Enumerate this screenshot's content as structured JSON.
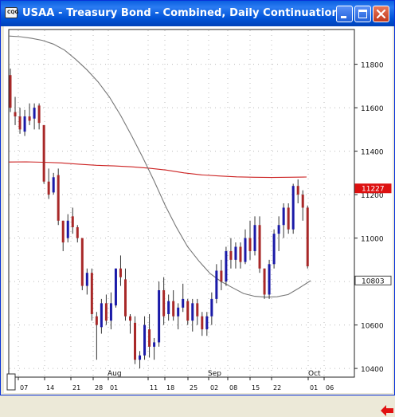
{
  "window": {
    "title": "USAA - Treasury Bond - Combined, Daily Continuation",
    "icon_text": "CQG"
  },
  "controls": {
    "minimize_icon": "minimize-icon",
    "maximize_icon": "maximize-icon",
    "close_icon": "close-icon"
  },
  "colors": {
    "up_candle": "#1a1aa8",
    "down_candle": "#a82828",
    "grid": "#bbbbbb",
    "ma_long": "#cc2222",
    "ma_curve": "#777777",
    "price_tag_red": "#dd1111",
    "price_tag_gray": "#444444"
  },
  "scroll_icon": "left-arrow-icon",
  "chart_data": {
    "type": "candlestick",
    "instrument": "USAA - Treasury Bond - Combined, Daily Continuation",
    "y_ticks": [
      "11800",
      "11600",
      "11400",
      "11200",
      "11000",
      "10800",
      "10600",
      "10400"
    ],
    "y_values": [
      11800,
      11600,
      11400,
      11200,
      11000,
      10800,
      10600,
      10400
    ],
    "ylim": [
      10360,
      11960
    ],
    "x_ticks": [
      "07",
      "14",
      "21",
      "28",
      "01",
      "11",
      "18",
      "25",
      "02",
      "08",
      "15",
      "22",
      "01",
      "06"
    ],
    "month_labels": [
      "Aug",
      "Sep",
      "Oct"
    ],
    "price_tags": [
      {
        "value": 11227,
        "label": "11227",
        "style": "red"
      },
      {
        "value": 10803,
        "label": "10803",
        "style": "gray"
      }
    ],
    "candles": [
      [
        11750,
        11780,
        11580,
        11600
      ],
      [
        11580,
        11650,
        11520,
        11560
      ],
      [
        11560,
        11600,
        11480,
        11500
      ],
      [
        11490,
        11590,
        11470,
        11560
      ],
      [
        11560,
        11620,
        11520,
        11540
      ],
      [
        11550,
        11620,
        11500,
        11600
      ],
      [
        11610,
        11620,
        11500,
        11530
      ],
      [
        11520,
        11520,
        11250,
        11260
      ],
      [
        11260,
        11320,
        11180,
        11200
      ],
      [
        11210,
        11300,
        11200,
        11280
      ],
      [
        11290,
        11320,
        11060,
        11080
      ],
      [
        11080,
        11080,
        10940,
        10980
      ],
      [
        11000,
        11110,
        10980,
        11080
      ],
      [
        11100,
        11140,
        11020,
        11050
      ],
      [
        11050,
        11060,
        10980,
        11000
      ],
      [
        11000,
        11000,
        10760,
        10780
      ],
      [
        10780,
        10860,
        10740,
        10840
      ],
      [
        10840,
        10860,
        10620,
        10650
      ],
      [
        10640,
        10660,
        10440,
        10600
      ],
      [
        10590,
        10720,
        10560,
        10700
      ],
      [
        10700,
        10740,
        10600,
        10620
      ],
      [
        10620,
        10750,
        10580,
        10700
      ],
      [
        10690,
        10860,
        10680,
        10860
      ],
      [
        10860,
        10920,
        10780,
        10820
      ],
      [
        10810,
        10860,
        10620,
        10640
      ],
      [
        10640,
        10650,
        10560,
        10620
      ],
      [
        10610,
        10640,
        10420,
        10440
      ],
      [
        10440,
        10480,
        10400,
        10460
      ],
      [
        10460,
        10640,
        10440,
        10600
      ],
      [
        10580,
        10650,
        10450,
        10500
      ],
      [
        10500,
        10540,
        10440,
        10520
      ],
      [
        10520,
        10800,
        10500,
        10760
      ],
      [
        10760,
        10820,
        10600,
        10640
      ],
      [
        10650,
        10740,
        10620,
        10710
      ],
      [
        10710,
        10760,
        10620,
        10640
      ],
      [
        10640,
        10700,
        10580,
        10680
      ],
      [
        10680,
        10790,
        10660,
        10720
      ],
      [
        10710,
        10720,
        10600,
        10620
      ],
      [
        10620,
        10720,
        10570,
        10700
      ],
      [
        10700,
        10720,
        10600,
        10640
      ],
      [
        10640,
        10660,
        10550,
        10580
      ],
      [
        10580,
        10660,
        10550,
        10640
      ],
      [
        10640,
        10750,
        10600,
        10720
      ],
      [
        10720,
        10880,
        10700,
        10850
      ],
      [
        10850,
        10900,
        10760,
        10800
      ],
      [
        10800,
        10960,
        10780,
        10940
      ],
      [
        10940,
        11000,
        10860,
        10900
      ],
      [
        10900,
        10980,
        10860,
        10960
      ],
      [
        10960,
        10980,
        10860,
        10890
      ],
      [
        10890,
        11040,
        10880,
        11000
      ],
      [
        11000,
        11080,
        10900,
        10940
      ],
      [
        10940,
        11100,
        10920,
        11060
      ],
      [
        11060,
        11100,
        10840,
        10860
      ],
      [
        10860,
        10860,
        10720,
        10740
      ],
      [
        10740,
        10900,
        10720,
        10880
      ],
      [
        10880,
        11040,
        10860,
        11020
      ],
      [
        11020,
        11100,
        10940,
        11060
      ],
      [
        11060,
        11160,
        11000,
        11140
      ],
      [
        11140,
        11160,
        11020,
        11040
      ],
      [
        11040,
        11250,
        11020,
        11240
      ],
      [
        11240,
        11270,
        11160,
        11200
      ],
      [
        11200,
        11220,
        11080,
        11140
      ],
      [
        11140,
        11150,
        10860,
        10870
      ]
    ],
    "moving_average_long": [
      11350,
      11351,
      11349,
      11346,
      11340,
      11335,
      11332,
      11328,
      11322,
      11313,
      11300,
      11291,
      11286,
      11282,
      11280,
      11279,
      11280,
      11281
    ],
    "moving_average_fast": [
      11930,
      11927,
      11920,
      11910,
      11893,
      11865,
      11822,
      11774,
      11718,
      11650,
      11565,
      11470,
      11370,
      11263,
      11150,
      11049,
      10960,
      10895,
      10837,
      10800,
      10772,
      10745,
      10732,
      10728,
      10730,
      10740,
      10771,
      10804
    ]
  }
}
